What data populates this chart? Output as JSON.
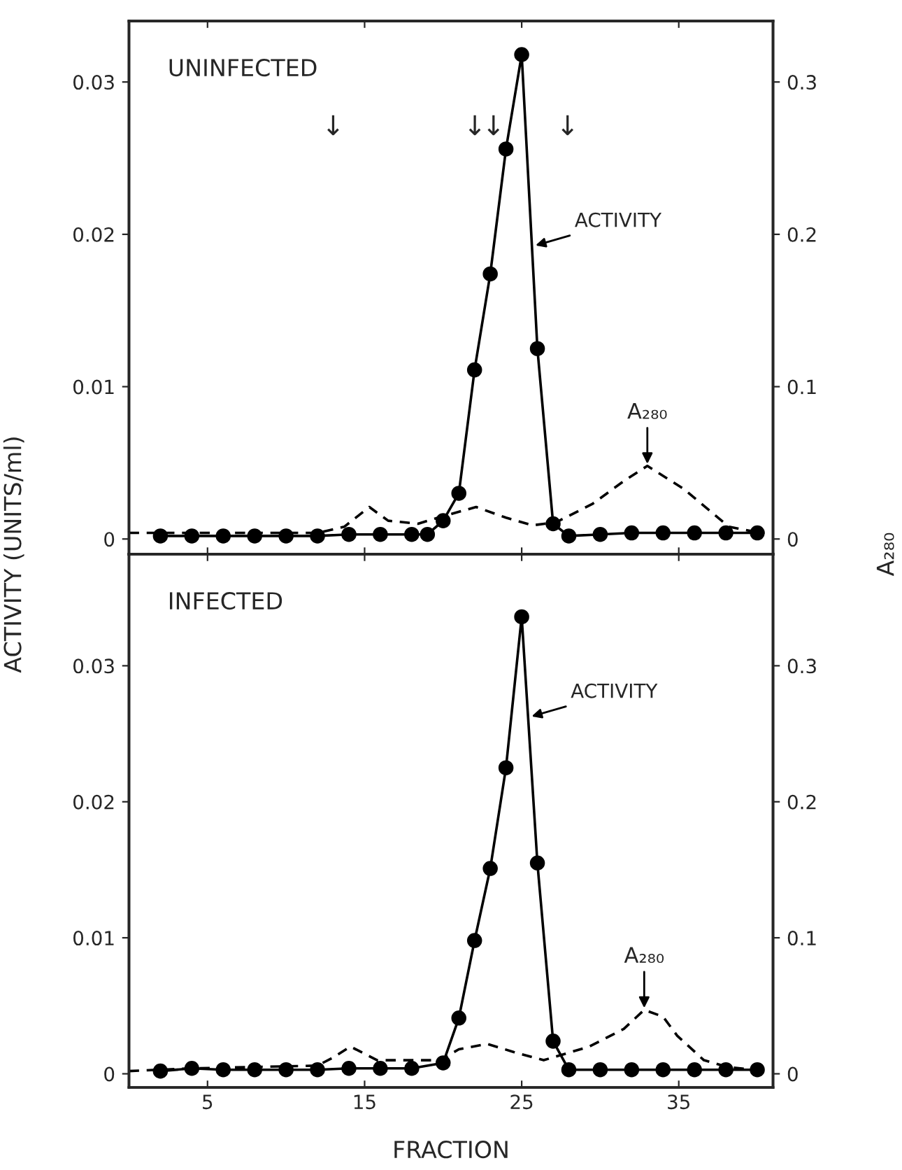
{
  "chart_data": [
    {
      "type": "line",
      "title": "UNINFECTED",
      "ylabel": "ACTIVITY (UNITS/ml)",
      "y2label": "A₂₈₀",
      "xlim": [
        0,
        41
      ],
      "xticks": [
        5,
        15,
        25,
        35
      ],
      "ylim": [
        -0.001,
        0.034
      ],
      "yticks": [
        0,
        0.01,
        0.02,
        0.03
      ],
      "y2lim": [
        -0.01,
        0.34
      ],
      "y2ticks": [
        0,
        0.1,
        0.2,
        0.3
      ],
      "tick_labels": "y",
      "grid": false,
      "legend": false,
      "series": [
        {
          "color": "#000000",
          "marker": "circle",
          "line_style": "solid",
          "x": [
            2,
            4,
            6,
            8,
            10,
            12,
            14,
            16,
            18,
            19,
            20,
            21,
            22,
            23,
            24,
            25,
            26,
            27,
            28,
            30,
            32,
            34,
            36,
            38,
            40
          ],
          "values": [
            0.0002,
            0.0002,
            0.0002,
            0.0002,
            0.0002,
            0.0002,
            0.0003,
            0.0003,
            0.0003,
            0.0003,
            0.0012,
            0.003,
            0.0111,
            0.0174,
            0.0256,
            0.0318,
            0.0125,
            0.001,
            0.0002,
            0.0003,
            0.0004,
            0.0004,
            0.0004,
            0.0004,
            0.0004
          ]
        },
        {
          "color": "#000000",
          "marker": "none",
          "line_style": "dashed",
          "axis": "y2",
          "x": [
            0,
            4,
            8,
            12,
            13.7,
            15.3,
            16.5,
            18.4,
            20,
            22.1,
            24,
            25.7,
            27.2,
            29.5,
            31.5,
            33,
            35.3,
            38.2,
            39.7
          ],
          "values": [
            0.004,
            0.004,
            0.004,
            0.004,
            0.008,
            0.021,
            0.012,
            0.01,
            0.015,
            0.021,
            0.014,
            0.009,
            0.011,
            0.023,
            0.038,
            0.048,
            0.033,
            0.008,
            0.005
          ]
        }
      ],
      "annotations": [
        "↓",
        "↓",
        "↓",
        "↓",
        {
          "text": "ACTIVITY",
          "x": 25.65,
          "y": 0.0192
        },
        {
          "text": "A₂₈₀",
          "x": 33,
          "y": 0.0048
        }
      ]
    },
    {
      "type": "line",
      "title": "INFECTED",
      "xlabel": "FRACTION",
      "xlim": [
        0,
        41
      ],
      "xticks": [
        5,
        15,
        25,
        35
      ],
      "ylim": [
        -0.001,
        0.0382
      ],
      "yticks": [
        0,
        0.01,
        0.02,
        0.03
      ],
      "y2lim": [
        -0.01,
        0.382
      ],
      "y2ticks": [
        0,
        0.1,
        0.2,
        0.3
      ],
      "grid": false,
      "legend": false,
      "series": [
        {
          "color": "#000000",
          "marker": "circle",
          "line_style": "solid",
          "x": [
            2,
            4,
            6,
            8,
            10,
            12,
            14,
            16,
            18,
            20,
            21,
            22,
            23,
            24,
            25,
            26,
            27,
            28,
            30,
            32,
            34,
            36,
            38,
            40
          ],
          "values": [
            0.0002,
            0.0004,
            0.0003,
            0.0003,
            0.0003,
            0.0003,
            0.0004,
            0.0004,
            0.0004,
            0.0008,
            0.0041,
            0.0098,
            0.0151,
            0.0225,
            0.0336,
            0.0155,
            0.0024,
            0.0003,
            0.0003,
            0.0003,
            0.0003,
            0.0003,
            0.0003,
            0.0003
          ]
        },
        {
          "color": "#000000",
          "marker": "none",
          "line_style": "dashed",
          "axis": "y2",
          "x": [
            0,
            4,
            8,
            12,
            13,
            14.1,
            15.8,
            19.8,
            21,
            22.8,
            24.5,
            26.4,
            29.3,
            31.5,
            32.8,
            34,
            34.9,
            36.6,
            38.1,
            39.7
          ],
          "values": [
            0.002,
            0.004,
            0.005,
            0.006,
            0.012,
            0.02,
            0.01,
            0.01,
            0.018,
            0.022,
            0.016,
            0.01,
            0.02,
            0.033,
            0.047,
            0.042,
            0.028,
            0.01,
            0.005,
            0.003
          ]
        }
      ],
      "annotations": [
        {
          "text": "ACTIVITY",
          "x": 25.4,
          "y": 0.0262
        },
        {
          "text": "A₂₈₀",
          "x": 32.8,
          "y": 0.0047
        }
      ]
    }
  ]
}
